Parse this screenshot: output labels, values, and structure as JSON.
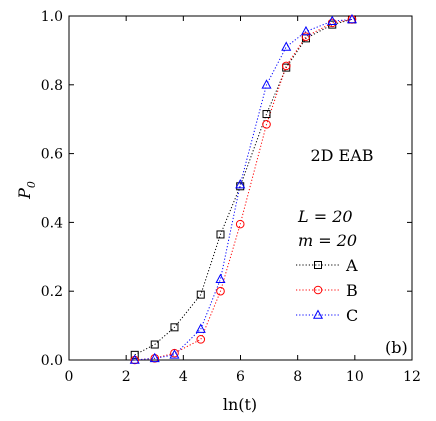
{
  "chart_data": {
    "type": "scatter",
    "panel_label": "(b)",
    "annotation": "2D EAB",
    "params": [
      "L = 20",
      "m = 20"
    ],
    "xlabel": "ln(t)",
    "ylabel": "P",
    "ylabel_subscript": "0",
    "xlim": [
      0,
      12
    ],
    "ylim": [
      0,
      1.0
    ],
    "x_ticks": [
      0,
      2,
      4,
      6,
      8,
      10,
      12
    ],
    "x_tick_labels": [
      "0",
      "2",
      "4",
      "6",
      "8",
      "10",
      "12"
    ],
    "y_ticks": [
      0.0,
      0.2,
      0.4,
      0.6,
      0.8,
      1.0
    ],
    "y_tick_labels": [
      "0.0",
      "0.2",
      "0.4",
      "0.6",
      "0.8",
      "1.0"
    ],
    "grid": false,
    "legend_position": "right",
    "series": [
      {
        "name": "A",
        "color": "#000000",
        "marker": "square",
        "line": "dotted",
        "x": [
          2.3,
          3.0,
          3.69,
          4.61,
          5.3,
          5.99,
          6.91,
          7.6,
          8.29,
          9.21,
          9.9
        ],
        "y": [
          0.015,
          0.045,
          0.095,
          0.19,
          0.365,
          0.505,
          0.715,
          0.85,
          0.935,
          0.975,
          0.99
        ]
      },
      {
        "name": "B",
        "color": "#ff0000",
        "marker": "circle",
        "line": "dotted",
        "x": [
          2.3,
          3.0,
          3.69,
          4.61,
          5.3,
          5.99,
          6.91,
          7.6,
          8.29,
          9.21,
          9.9
        ],
        "y": [
          0.0,
          0.005,
          0.02,
          0.06,
          0.2,
          0.395,
          0.685,
          0.855,
          0.94,
          0.98,
          0.99
        ]
      },
      {
        "name": "C",
        "color": "#0000ff",
        "marker": "triangle",
        "line": "dotted",
        "x": [
          2.3,
          3.0,
          3.69,
          4.61,
          5.3,
          5.99,
          6.91,
          7.6,
          8.29,
          9.21,
          9.9
        ],
        "y": [
          0.0,
          0.005,
          0.015,
          0.09,
          0.235,
          0.51,
          0.8,
          0.91,
          0.955,
          0.985,
          0.99
        ]
      }
    ]
  }
}
